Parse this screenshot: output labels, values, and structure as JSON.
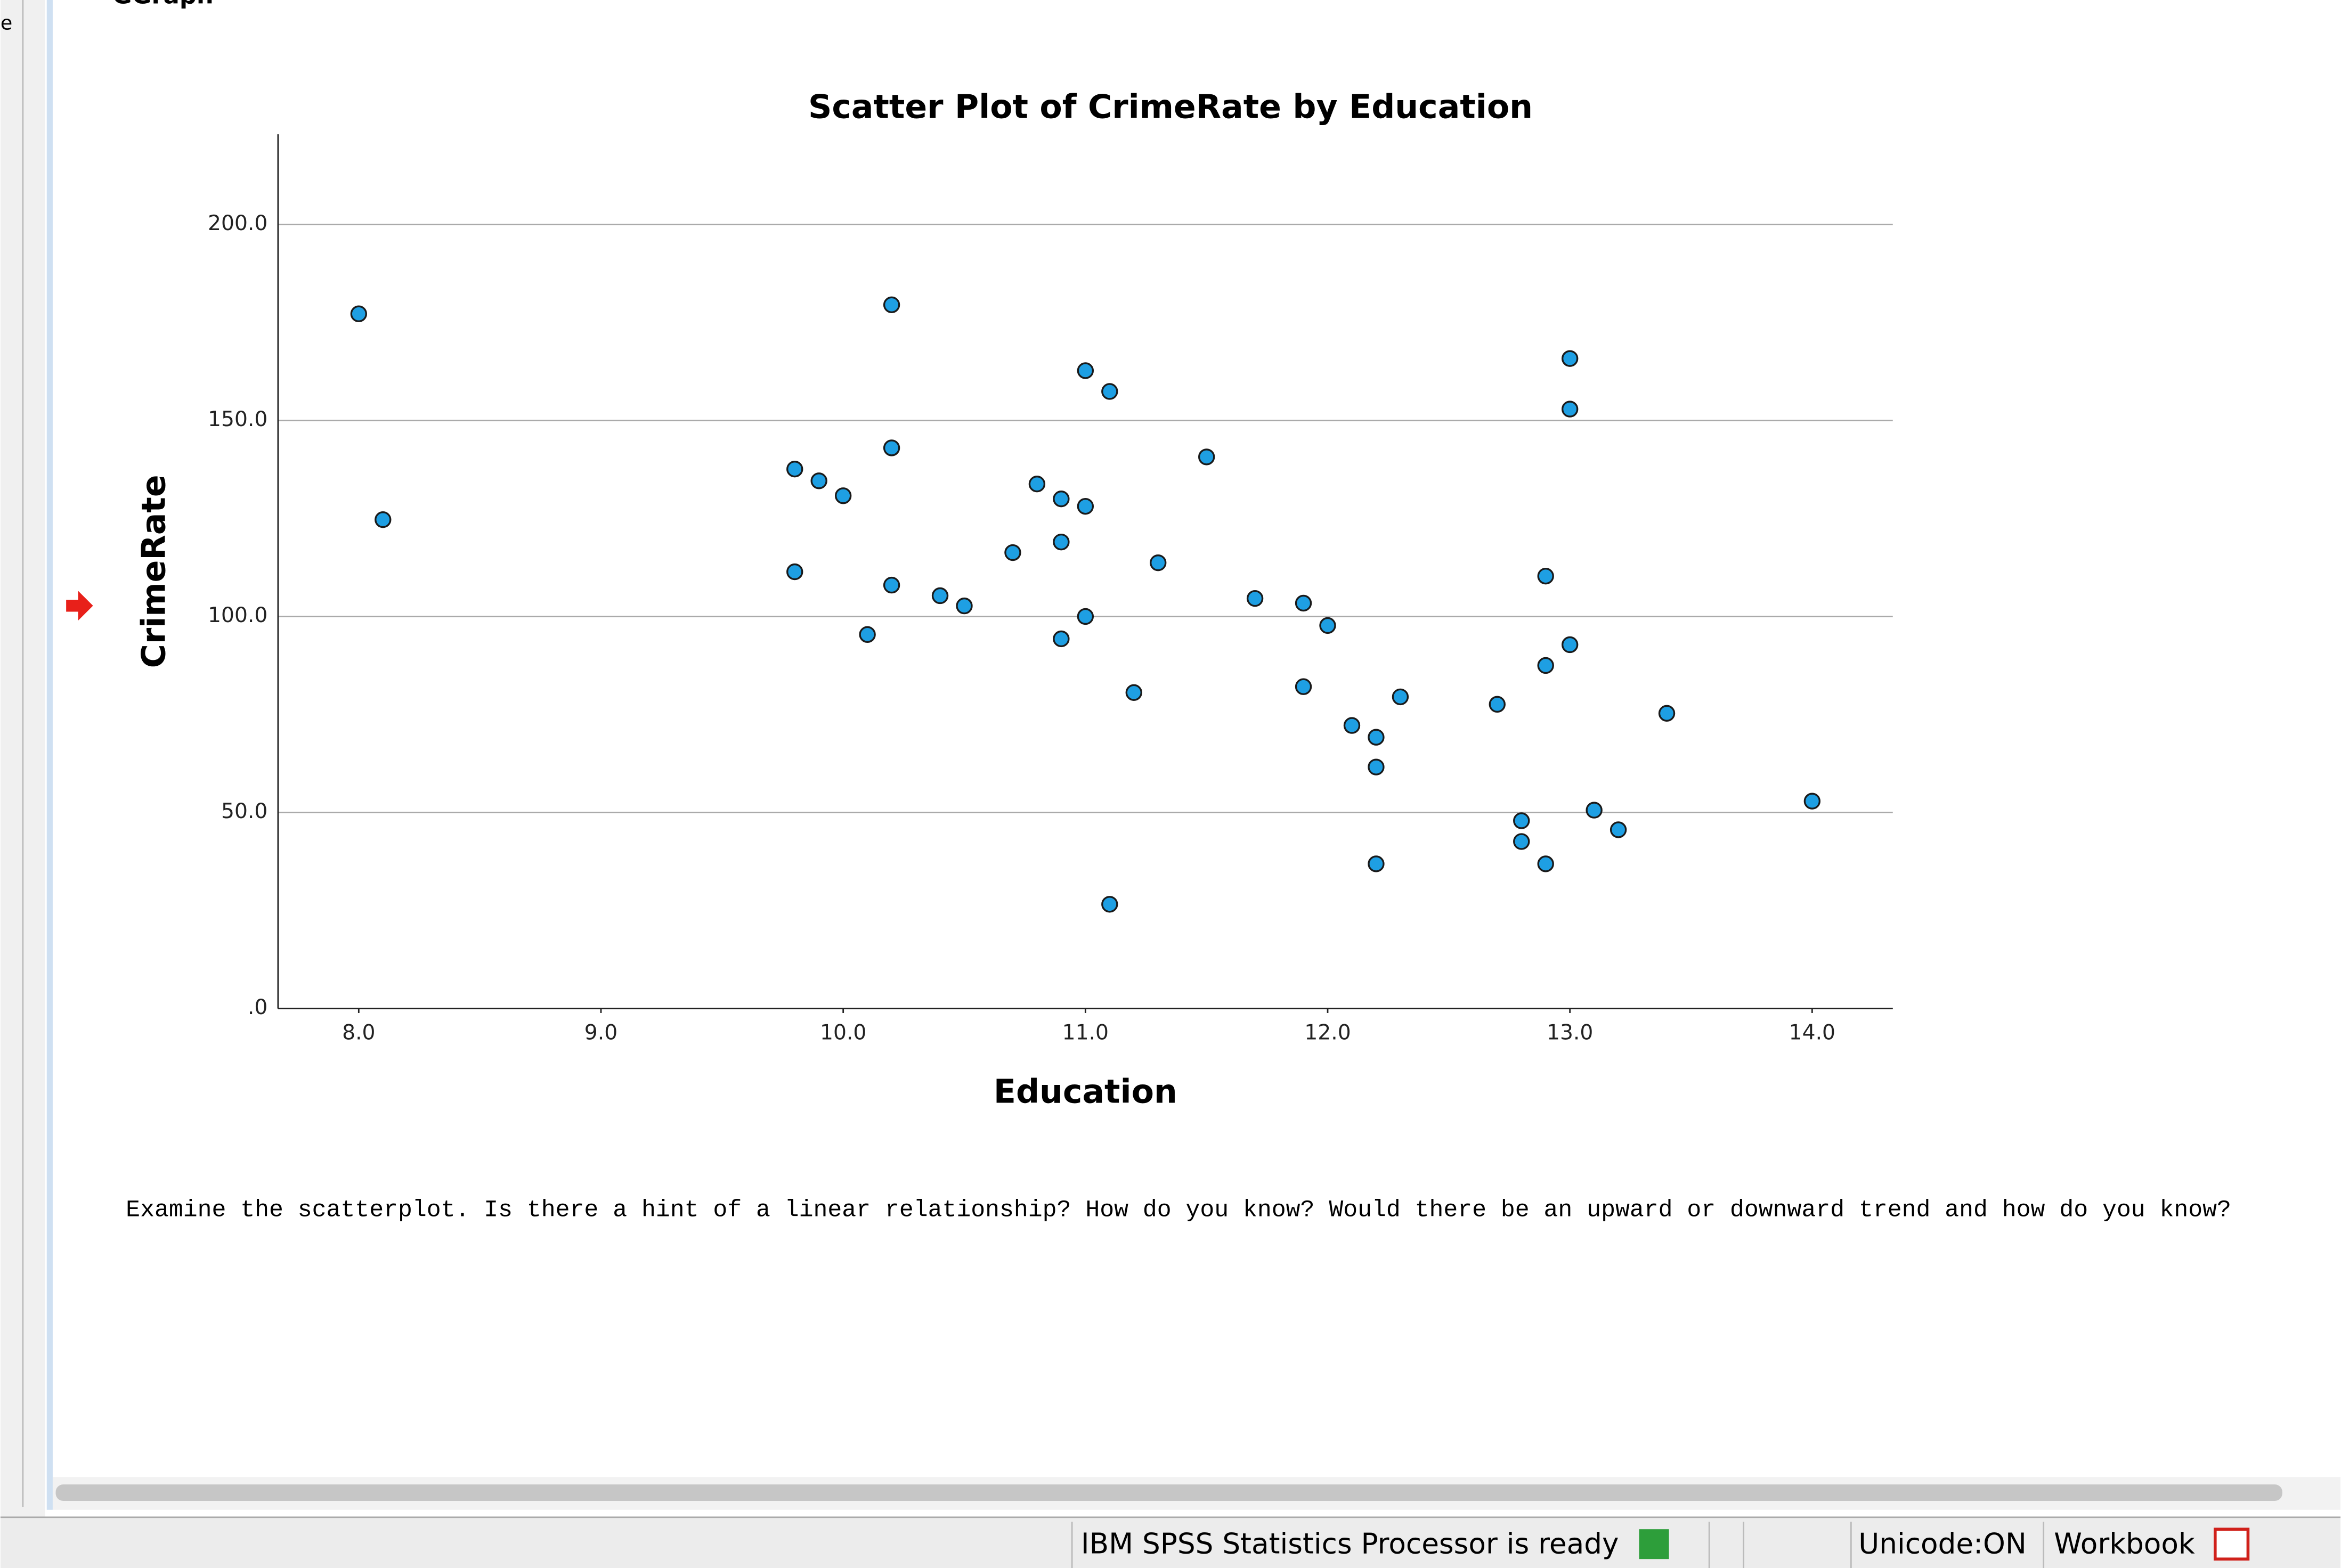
{
  "output": {
    "heading": "GGraph",
    "left_fragment": "e",
    "note": "Examine the scatterplot. Is there a hint of a linear relationship? How do you know? Would there be an upward or downward trend and how do you know?"
  },
  "status_bar": {
    "message": "IBM SPSS Statistics Processor is ready",
    "unicode": "Unicode:ON",
    "mode": "Workbook"
  },
  "chart_data": {
    "type": "scatter",
    "title": "Scatter Plot of CrimeRate by Education",
    "x_label": "Education",
    "y_label": "CrimeRate",
    "color": "#1e9fe3",
    "grid": true,
    "xlim": [
      7.667,
      14.333
    ],
    "ylim": [
      0,
      223
    ],
    "xticks": [
      {
        "value": 8,
        "label": "8.0"
      },
      {
        "value": 9,
        "label": "9.0"
      },
      {
        "value": 10,
        "label": "10.0"
      },
      {
        "value": 11,
        "label": "11.0"
      },
      {
        "value": 12,
        "label": "12.0"
      },
      {
        "value": 13,
        "label": "13.0"
      },
      {
        "value": 14,
        "label": "14.0"
      }
    ],
    "yticks": [
      {
        "value": 0,
        "label": ".0"
      },
      {
        "value": 50,
        "label": "50.0"
      },
      {
        "value": 100,
        "label": "100.0"
      },
      {
        "value": 150,
        "label": "150.0"
      },
      {
        "value": 200,
        "label": "200.0"
      }
    ],
    "x": [
      8.0,
      8.1,
      9.8,
      9.8,
      9.9,
      10.0,
      10.1,
      10.2,
      10.2,
      10.2,
      10.4,
      10.5,
      10.7,
      10.8,
      10.9,
      10.9,
      10.9,
      11.0,
      11.0,
      11.0,
      11.1,
      11.1,
      11.2,
      11.3,
      11.5,
      11.7,
      11.9,
      11.9,
      12.0,
      12.1,
      12.2,
      12.2,
      12.2,
      12.3,
      12.7,
      12.8,
      12.8,
      12.9,
      12.9,
      12.9,
      13.0,
      13.0,
      13.0,
      13.1,
      13.2,
      13.4,
      14.0
    ],
    "values": [
      177.2,
      124.7,
      137.6,
      111.4,
      134.6,
      130.8,
      95.4,
      179.5,
      143.0,
      108.0,
      105.3,
      102.7,
      116.3,
      133.8,
      130.0,
      119.0,
      94.3,
      162.7,
      128.1,
      100.0,
      157.4,
      26.6,
      80.6,
      113.7,
      140.7,
      104.6,
      103.4,
      82.1,
      97.7,
      72.2,
      69.2,
      61.6,
      36.9,
      79.5,
      77.6,
      47.9,
      42.6,
      110.3,
      87.5,
      36.9,
      165.8,
      152.9,
      92.8,
      50.6,
      45.6,
      75.3,
      52.9
    ]
  }
}
